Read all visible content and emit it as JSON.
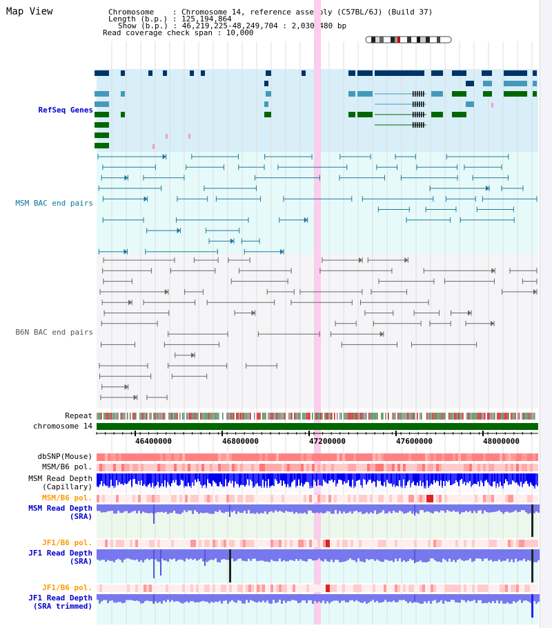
{
  "view": {
    "title": "Map View",
    "header": {
      "chromosome_line": "Chromosome    : Chromosome 14, reference assembly (C57BL/6J) (Build 37)",
      "length_line": "Length (b.p.) : 125,194,864",
      "show_line": "Show (b.p.) : 46,219,225-48,249,704 : 2,030,480 bp",
      "coverage_line": "Read coverage check span : 10,000"
    }
  },
  "tracks": {
    "refseq": "RefSeq Genes",
    "msm_bac": "MSM BAC end pairs",
    "b6n_bac": "B6N BAC end pairs",
    "repeat": "Repeat",
    "chromosome": "chromosome 14",
    "dbsnp": "dbSNP(Mouse)",
    "msm_b6_pol_1": "MSM/B6 pol.",
    "msm_depth_cap": "MSM Read Depth\n(Capillary)",
    "msm_b6_pol_2": "MSM/B6 pol.",
    "msm_depth_sra": "MSM Read Depth\n(SRA)",
    "jf1_b6_pol_1": "JF1/B6 pol.",
    "jf1_depth_sra": "JF1 Read Depth\n(SRA)",
    "jf1_b6_pol_2": "JF1/B6 pol.",
    "jf1_depth_trim": "JF1 Read Depth\n(SRA trimmed)"
  },
  "axis": {
    "ticks": [
      "46400000",
      "46800000",
      "47200000",
      "47600000",
      "48000000"
    ]
  },
  "colors": {
    "refseq_label": "#0000cc",
    "msm_label": "#007799",
    "b6n_label": "#555555",
    "orange_label": "#ff9900",
    "blue_label": "#0000cc",
    "gene_dark": "#003366",
    "gene_mid": "#4499bb",
    "gene_green": "#006600",
    "highlight": "#ffccee"
  }
}
